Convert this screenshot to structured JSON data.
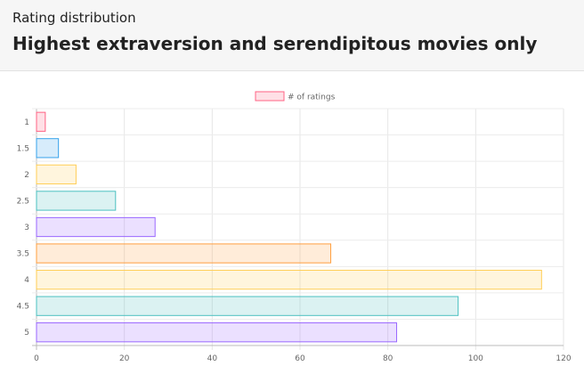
{
  "header": {
    "subtitle": "Rating distribution",
    "title": "Highest extraversion and serendipitous movies only"
  },
  "chart_data": {
    "type": "bar",
    "orientation": "horizontal",
    "categories": [
      "1",
      "1.5",
      "2",
      "2.5",
      "3",
      "3.5",
      "4",
      "4.5",
      "5"
    ],
    "series": [
      {
        "name": "# of ratings",
        "values": [
          2,
          5,
          9,
          18,
          27,
          67,
          115,
          96,
          82
        ]
      }
    ],
    "xlim": [
      0,
      120
    ],
    "xticks": [
      0,
      20,
      40,
      60,
      80,
      100,
      120
    ],
    "grid": true,
    "legend": "top-center",
    "colors": {
      "fills": [
        "rgba(255,99,132,0.2)",
        "rgba(54,162,235,0.2)",
        "rgba(255,206,86,0.2)",
        "rgba(75,192,192,0.2)",
        "rgba(153,102,255,0.2)",
        "rgba(255,159,64,0.2)",
        "rgba(255,206,86,0.2)",
        "rgba(75,192,192,0.2)",
        "rgba(153,102,255,0.2)"
      ],
      "strokes": [
        "#ff6384",
        "#36a2eb",
        "#ffce56",
        "#4bc0c0",
        "#9966ff",
        "#ff9f40",
        "#ffce56",
        "#4bc0c0",
        "#9966ff"
      ]
    }
  }
}
